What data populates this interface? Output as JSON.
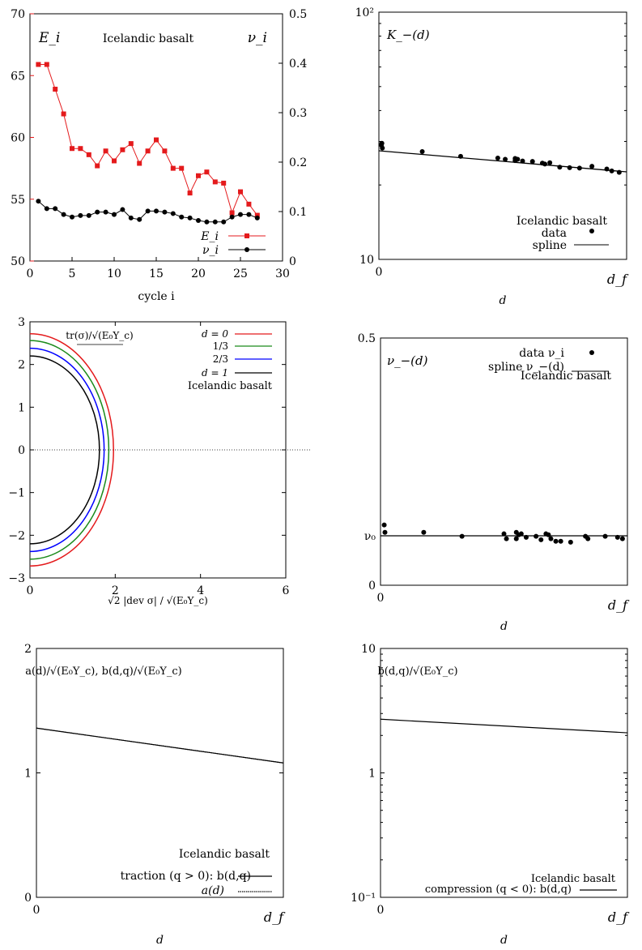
{
  "chart_data": [
    {
      "id": "p1",
      "type": "line",
      "material_label": "Icelandic basalt",
      "left_axis_label": "E_i",
      "right_axis_label": "ν_i",
      "xlabel": "cycle i",
      "xlim": [
        0,
        30
      ],
      "ylim_left": [
        50,
        70
      ],
      "ylim_right": [
        0,
        0.5
      ],
      "xticks": [
        "0",
        "5",
        "10",
        "15",
        "20",
        "25",
        "30"
      ],
      "yticks_left": [
        "50",
        "55",
        "60",
        "65",
        "70"
      ],
      "yticks_right": [
        "0",
        "0.1",
        "0.2",
        "0.3",
        "0.4",
        "0.5"
      ],
      "colors": {
        "E": "#e41a1c",
        "nu": "#000000"
      },
      "series": [
        {
          "name": "E_i",
          "axis": "left",
          "x": [
            1,
            2,
            3,
            4,
            5,
            6,
            7,
            8,
            9,
            10,
            11,
            12,
            13,
            14,
            15,
            16,
            17,
            18,
            19,
            20,
            21,
            22,
            23,
            24,
            25,
            26,
            27
          ],
          "values": [
            65.9,
            65.9,
            63.9,
            61.9,
            59.1,
            59.1,
            58.6,
            57.7,
            58.9,
            58.1,
            59.0,
            59.5,
            57.9,
            58.9,
            59.8,
            58.9,
            57.5,
            57.5,
            55.5,
            56.9,
            57.2,
            56.4,
            56.3,
            53.9,
            55.6,
            54.6,
            53.7
          ]
        },
        {
          "name": "ν_i",
          "axis": "right",
          "x": [
            1,
            2,
            3,
            4,
            5,
            6,
            7,
            8,
            9,
            10,
            11,
            12,
            13,
            14,
            15,
            16,
            17,
            18,
            19,
            20,
            21,
            22,
            23,
            24,
            25,
            26,
            27
          ],
          "values": [
            0.121,
            0.106,
            0.106,
            0.094,
            0.089,
            0.092,
            0.092,
            0.099,
            0.099,
            0.094,
            0.104,
            0.087,
            0.084,
            0.101,
            0.101,
            0.099,
            0.096,
            0.089,
            0.087,
            0.082,
            0.079,
            0.079,
            0.079,
            0.089,
            0.094,
            0.094,
            0.087
          ]
        }
      ]
    },
    {
      "id": "p2",
      "type": "scatter",
      "title": "K_−(d)",
      "material_label": "Icelandic basalt",
      "xlabel": "d",
      "yscale": "log",
      "ylim": [
        10,
        100
      ],
      "yticks": [
        "10",
        "10²"
      ],
      "xticks": [
        "0",
        "d_f"
      ],
      "xlim": [
        0,
        1
      ],
      "series": [
        {
          "name": "data",
          "x": [
            0.01,
            0.012,
            0.014,
            0.175,
            0.33,
            0.48,
            0.51,
            0.55,
            0.55,
            0.56,
            0.58,
            0.62,
            0.66,
            0.67,
            0.69,
            0.73,
            0.77,
            0.81,
            0.86,
            0.92,
            0.94,
            0.97
          ],
          "values": [
            29.0,
            29.5,
            28.2,
            27.3,
            26.1,
            25.7,
            25.4,
            25.6,
            25.1,
            25.4,
            25.0,
            24.9,
            24.5,
            24.3,
            24.6,
            23.6,
            23.5,
            23.4,
            23.8,
            23.2,
            22.8,
            22.5
          ]
        },
        {
          "name": "spline",
          "x": [
            0,
            1
          ],
          "values": [
            27.5,
            22.6
          ]
        }
      ]
    },
    {
      "id": "p3",
      "type": "line",
      "title": "tr(σ)/√(E₀Y_c)",
      "material_label": "Icelandic basalt",
      "xlabel": "√2 |dev σ| / √(E₀Y_c)",
      "xlim": [
        0,
        6
      ],
      "ylim": [
        -3,
        3
      ],
      "xticks": [
        "0",
        "2",
        "4",
        "6"
      ],
      "yticks": [
        "−3",
        "−2",
        "−1",
        "0",
        "1",
        "2",
        "3"
      ],
      "series": [
        {
          "name": "d = 0",
          "color": "#e41a1c",
          "a": 2.72,
          "b": 1.96
        },
        {
          "name": "1/3",
          "color": "#1a8a1a",
          "a": 2.56,
          "b": 1.85
        },
        {
          "name": "2/3",
          "color": "#0000ff",
          "a": 2.38,
          "b": 1.74
        },
        {
          "name": "d = 1",
          "color": "#000000",
          "a": 2.2,
          "b": 1.63
        }
      ]
    },
    {
      "id": "p4",
      "type": "scatter",
      "title": "ν_−(d)",
      "material_label": "Icelandic basalt",
      "xlabel": "d",
      "ylim": [
        0,
        0.5
      ],
      "yticks": [
        "0",
        "ν₀",
        "0.5"
      ],
      "nu0": 0.1,
      "xticks": [
        "0",
        "d_f"
      ],
      "xlim": [
        0,
        1
      ],
      "series": [
        {
          "name": "data ν_i",
          "x": [
            0.015,
            0.018,
            0.175,
            0.33,
            0.5,
            0.51,
            0.55,
            0.55,
            0.56,
            0.57,
            0.59,
            0.63,
            0.65,
            0.67,
            0.68,
            0.69,
            0.71,
            0.73,
            0.77,
            0.83,
            0.84,
            0.91,
            0.96,
            0.98
          ],
          "values": [
            0.122,
            0.107,
            0.107,
            0.099,
            0.104,
            0.094,
            0.094,
            0.107,
            0.102,
            0.104,
            0.097,
            0.099,
            0.092,
            0.104,
            0.102,
            0.094,
            0.089,
            0.089,
            0.087,
            0.099,
            0.094,
            0.099,
            0.097,
            0.094
          ]
        },
        {
          "name": "spline ν_−(d)",
          "x": [
            0,
            1
          ],
          "values": [
            0.1,
            0.1
          ]
        }
      ]
    },
    {
      "id": "p5",
      "type": "line",
      "title": "a(d)/√(E₀Y_c), b(d,q)/√(E₀Y_c)",
      "material_label": "Icelandic basalt",
      "xlabel": "d",
      "ylim": [
        0,
        2
      ],
      "yticks": [
        "0",
        "1",
        "2"
      ],
      "xticks": [
        "0",
        "d_f"
      ],
      "xlim": [
        0,
        1
      ],
      "series": [
        {
          "name": "traction (q > 0): b(d,q)",
          "style": "solid",
          "x": [
            0,
            1
          ],
          "values": [
            1.36,
            1.08
          ]
        },
        {
          "name": "a(d)",
          "style": "dotted",
          "x": [
            0,
            1
          ],
          "values": [
            1.36,
            1.08
          ]
        }
      ]
    },
    {
      "id": "p6",
      "type": "line",
      "title": "b(d,q)/√(E₀Y_c)",
      "material_label": "Icelandic basalt",
      "xlabel": "d",
      "yscale": "log",
      "ylim": [
        0.1,
        10
      ],
      "yticks": [
        "10⁻¹",
        "1",
        "10"
      ],
      "xticks": [
        "0",
        "d_f"
      ],
      "xlim": [
        0,
        1
      ],
      "series": [
        {
          "name": "compression (q < 0): b(d,q)",
          "x": [
            0,
            1
          ],
          "values": [
            2.7,
            2.1
          ]
        }
      ]
    }
  ]
}
